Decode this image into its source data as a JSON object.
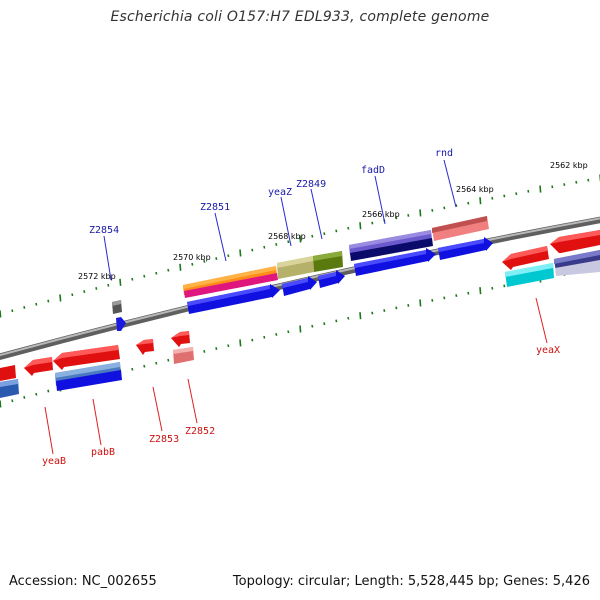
{
  "title": "Escherichia coli O157:H7 EDL933, complete genome",
  "footer": {
    "accession": "Accession: NC_002655",
    "info": "Topology: circular; Length: 5,528,445 bp; Genes: 5,426"
  },
  "colors": {
    "backbone": "#8a8a8a",
    "tick": "#1a7a1a",
    "forward_label": "#1a1aaa",
    "reverse_label": "#cc1111",
    "leader_forward": "#2a2ad0",
    "leader_reverse": "#dd2222"
  },
  "scale_labels": [
    {
      "id": "kbp-2572",
      "text": "2572 kbp"
    },
    {
      "id": "kbp-2570",
      "text": "2570 kbp"
    },
    {
      "id": "kbp-2568",
      "text": "2568 kbp"
    },
    {
      "id": "kbp-2566",
      "text": "2566 kbp"
    },
    {
      "id": "kbp-2564",
      "text": "2564 kbp"
    },
    {
      "id": "kbp-2562",
      "text": "2562 kbp"
    }
  ],
  "gene_labels": [
    {
      "id": "Z2854",
      "text": "Z2854",
      "strand": "forward"
    },
    {
      "id": "Z2851",
      "text": "Z2851",
      "strand": "forward"
    },
    {
      "id": "yeaZ",
      "text": "yeaZ",
      "strand": "forward"
    },
    {
      "id": "Z2849",
      "text": "Z2849",
      "strand": "forward"
    },
    {
      "id": "fadD",
      "text": "fadD",
      "strand": "forward"
    },
    {
      "id": "rnd",
      "text": "rnd",
      "strand": "forward"
    },
    {
      "id": "yeaX",
      "text": "yeaX",
      "strand": "reverse"
    },
    {
      "id": "yeaB",
      "text": "yeaB",
      "strand": "reverse"
    },
    {
      "id": "pabB",
      "text": "pabB",
      "strand": "reverse"
    },
    {
      "id": "Z2853",
      "text": "Z2853",
      "strand": "reverse"
    },
    {
      "id": "Z2852",
      "text": "Z2852",
      "strand": "reverse"
    }
  ]
}
